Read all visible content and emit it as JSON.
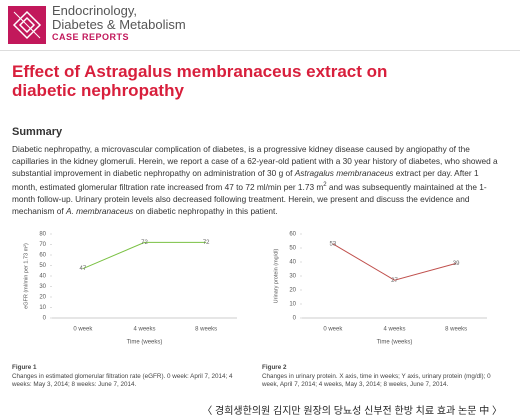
{
  "header": {
    "journal_lines": [
      "Endocrinology,",
      "Diabetes & Metabolism"
    ],
    "section": "CASE REPORTS"
  },
  "title": "Effect of Astragalus membranaceus extract on diabetic nephropathy",
  "summary": {
    "heading": "Summary",
    "segments": [
      {
        "text": "Diabetic nephropathy, a microvascular complication of diabetes, is a progressive kidney disease caused by angiopathy of the capillaries in the kidney glomeruli. Herein, we report a case of a 62-year-old patient with a 30 year history of diabetes, who showed a substantial improvement in diabetic nephropathy on administration of 30 g of ",
        "style": "normal"
      },
      {
        "text": "Astragalus membranaceus",
        "style": "italic"
      },
      {
        "text": " extract per day. After 1 month, estimated glomerular filtration rate increased from 47 to 72 ml/min per 1.73 m",
        "style": "normal"
      },
      {
        "text": "2",
        "style": "sup"
      },
      {
        "text": " and was subsequently maintained at the 1-month follow-up. Urinary protein levels also decreased following treatment. Herein, we present and discuss the evidence and mechanism of ",
        "style": "normal"
      },
      {
        "text": "A. membranaceus",
        "style": "italic"
      },
      {
        "text": " on diabetic nephropathy in this patient.",
        "style": "normal"
      }
    ]
  },
  "chart_data": [
    {
      "type": "line",
      "categories": [
        "0 week",
        "4 weeks",
        "8 weeks"
      ],
      "values": [
        47,
        72,
        72
      ],
      "color": "#7ac143",
      "ylim": [
        0,
        80
      ],
      "yticks": [
        0,
        10,
        20,
        30,
        40,
        50,
        60,
        70,
        80
      ],
      "y_label": "eGFR (ml/min per 1.73 m²)",
      "x_label": "Time (weeks)",
      "caption_title": "Figure 1",
      "caption": "Changes in estimated glomerular filtration rate (eGFR). 0 week: April 7, 2014; 4 weeks: May 3, 2014; 8 weeks: June 7, 2014."
    },
    {
      "type": "line",
      "categories": [
        "0 week",
        "4 weeks",
        "8 weeks"
      ],
      "values": [
        53,
        27,
        39
      ],
      "color": "#c0504d",
      "ylim": [
        0,
        60
      ],
      "yticks": [
        0,
        10,
        20,
        30,
        40,
        50,
        60
      ],
      "y_label": "Urinary protein (mg/dl)",
      "x_label": "Time (weeks)",
      "caption_title": "Figure 2",
      "caption": "Changes in urinary protein. X axis, time in weeks; Y axis, urinary protein (mg/dl); 0 week, April 7, 2014; 4 weeks, May 3, 2014; 8 weeks, June 7, 2014."
    }
  ],
  "footer": "〈 경희생한의원 김지만 원장의 당뇨성 신부전 한방 치료 효과 논문 中 〉"
}
